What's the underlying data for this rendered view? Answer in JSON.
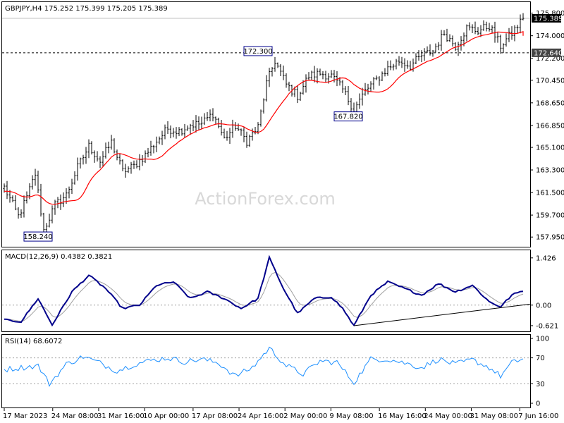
{
  "chart_data": [
    {
      "panel": "price",
      "type": "candlestick",
      "title": "GBPJPY,H4  175.252 175.399 175.205 175.389",
      "watermark": "ActionForex.com",
      "ylim": [
        157.4,
        176.4
      ],
      "yticks": [
        157.95,
        159.7,
        161.5,
        163.3,
        165.1,
        166.85,
        168.65,
        170.45,
        172.2,
        174.0,
        175.8
      ],
      "ytick_labels": [
        "157.950",
        "159.700",
        "161.500",
        "163.300",
        "165.100",
        "166.850",
        "168.650",
        "170.450",
        "172.200",
        "174.000",
        "175.800"
      ],
      "current_price": {
        "value": 175.389,
        "label": "175.389"
      },
      "level_line": {
        "value": 172.64,
        "label": "172.640",
        "style": "dashed"
      },
      "annotations": [
        {
          "label": "158.240",
          "value": 158.24,
          "index": 14
        },
        {
          "label": "172.300",
          "value": 172.3,
          "index": 96
        },
        {
          "label": "167.820",
          "value": 167.82,
          "index": 124
        }
      ],
      "path_anchors": [
        [
          0,
          161.9
        ],
        [
          5,
          159.6
        ],
        [
          8,
          161.1
        ],
        [
          11,
          163.0
        ],
        [
          14,
          158.5
        ],
        [
          18,
          160.5
        ],
        [
          22,
          161.3
        ],
        [
          26,
          163.5
        ],
        [
          30,
          165.2
        ],
        [
          34,
          164.0
        ],
        [
          38,
          165.5
        ],
        [
          42,
          163.2
        ],
        [
          46,
          163.6
        ],
        [
          50,
          164.5
        ],
        [
          54,
          165.6
        ],
        [
          58,
          166.6
        ],
        [
          62,
          166.4
        ],
        [
          66,
          166.9
        ],
        [
          70,
          167.0
        ],
        [
          74,
          167.8
        ],
        [
          78,
          165.8
        ],
        [
          82,
          166.8
        ],
        [
          86,
          165.6
        ],
        [
          90,
          166.7
        ],
        [
          93,
          170.2
        ],
        [
          96,
          172.0
        ],
        [
          100,
          170.1
        ],
        [
          104,
          169.2
        ],
        [
          108,
          170.8
        ],
        [
          112,
          171.0
        ],
        [
          116,
          170.8
        ],
        [
          120,
          169.7
        ],
        [
          124,
          168.1
        ],
        [
          128,
          169.6
        ],
        [
          132,
          170.5
        ],
        [
          136,
          171.4
        ],
        [
          140,
          172.0
        ],
        [
          144,
          171.6
        ],
        [
          148,
          172.4
        ],
        [
          152,
          172.8
        ],
        [
          156,
          174.2
        ],
        [
          160,
          173.2
        ],
        [
          164,
          174.6
        ],
        [
          168,
          174.4
        ],
        [
          172,
          174.8
        ],
        [
          176,
          173.2
        ],
        [
          180,
          174.2
        ],
        [
          184,
          175.389
        ]
      ],
      "ma": {
        "color": "#ff0000",
        "start": 161.6,
        "end": 174.0
      }
    },
    {
      "panel": "macd",
      "type": "line",
      "title": "MACD(12,26,9) 0.4382 0.3821",
      "ylim": [
        -0.75,
        1.55
      ],
      "ytick_labels": [
        "1.426",
        "0.00",
        "-0.621"
      ],
      "ytick_values": [
        1.426,
        0.0,
        -0.621
      ],
      "zero_label": "0.00",
      "anchors": [
        [
          0,
          -0.45
        ],
        [
          6,
          -0.5
        ],
        [
          12,
          0.2
        ],
        [
          17,
          -0.6
        ],
        [
          24,
          0.4
        ],
        [
          30,
          0.9
        ],
        [
          36,
          0.5
        ],
        [
          42,
          -0.1
        ],
        [
          48,
          0.0
        ],
        [
          54,
          0.6
        ],
        [
          60,
          0.7
        ],
        [
          66,
          0.2
        ],
        [
          72,
          0.4
        ],
        [
          78,
          0.2
        ],
        [
          84,
          -0.1
        ],
        [
          90,
          0.2
        ],
        [
          94,
          1.426
        ],
        [
          99,
          0.5
        ],
        [
          104,
          -0.25
        ],
        [
          110,
          0.2
        ],
        [
          116,
          0.25
        ],
        [
          120,
          -0.1
        ],
        [
          124,
          -0.621
        ],
        [
          130,
          0.3
        ],
        [
          136,
          0.7
        ],
        [
          142,
          0.5
        ],
        [
          148,
          0.3
        ],
        [
          154,
          0.65
        ],
        [
          160,
          0.4
        ],
        [
          166,
          0.6
        ],
        [
          172,
          0.1
        ],
        [
          176,
          -0.05
        ],
        [
          180,
          0.3
        ],
        [
          184,
          0.4382
        ]
      ],
      "trendline": {
        "start": [
          124,
          -0.621
        ],
        "end": [
          184,
          0.03
        ]
      }
    },
    {
      "panel": "rsi",
      "type": "line",
      "title": "RSI(14) 68.6072",
      "ylim": [
        0,
        100
      ],
      "ytick_labels": [
        "100",
        "70",
        "30",
        "0"
      ],
      "ytick_values": [
        100,
        70,
        30,
        0
      ],
      "dashed_levels": [
        70,
        30
      ],
      "anchors": [
        [
          0,
          52
        ],
        [
          6,
          55
        ],
        [
          12,
          58
        ],
        [
          16,
          30
        ],
        [
          22,
          60
        ],
        [
          28,
          72
        ],
        [
          34,
          62
        ],
        [
          40,
          50
        ],
        [
          46,
          60
        ],
        [
          52,
          66
        ],
        [
          58,
          70
        ],
        [
          64,
          64
        ],
        [
          70,
          68
        ],
        [
          76,
          62
        ],
        [
          82,
          42
        ],
        [
          88,
          55
        ],
        [
          94,
          85
        ],
        [
          100,
          58
        ],
        [
          106,
          45
        ],
        [
          112,
          65
        ],
        [
          118,
          63
        ],
        [
          124,
          32
        ],
        [
          130,
          68
        ],
        [
          136,
          68
        ],
        [
          142,
          62
        ],
        [
          148,
          55
        ],
        [
          154,
          68
        ],
        [
          160,
          60
        ],
        [
          166,
          67
        ],
        [
          172,
          55
        ],
        [
          176,
          42
        ],
        [
          180,
          62
        ],
        [
          184,
          68.6072
        ]
      ]
    }
  ],
  "x_axis": {
    "labels": [
      {
        "label": "17 Mar 2023",
        "index": 0
      },
      {
        "label": "24 Mar 08:00",
        "index": 19
      },
      {
        "label": "31 Mar 16:00",
        "index": 37
      },
      {
        "label": "10 Apr 00:00",
        "index": 55
      },
      {
        "label": "17 Apr 08:00",
        "index": 74
      },
      {
        "label": "24 Apr 16:00",
        "index": 92
      },
      {
        "label": "2 May 00:00",
        "index": 110
      },
      {
        "label": "9 May 08:00",
        "index": 128
      },
      {
        "label": "16 May 16:00",
        "index": 147
      },
      {
        "label": "24 May 00:00",
        "index": 165
      },
      {
        "label": "31 May 08:00",
        "index": 183
      },
      {
        "label": "7 Jun 16:00",
        "index": 202
      }
    ]
  },
  "colors": {
    "candle": "#000000",
    "ma": "#ff0000",
    "macd": "#00008b",
    "signal": "#a0a0a0",
    "rsi": "#1e90ff",
    "axis": "#000000",
    "grid": "#c0c0c0"
  }
}
